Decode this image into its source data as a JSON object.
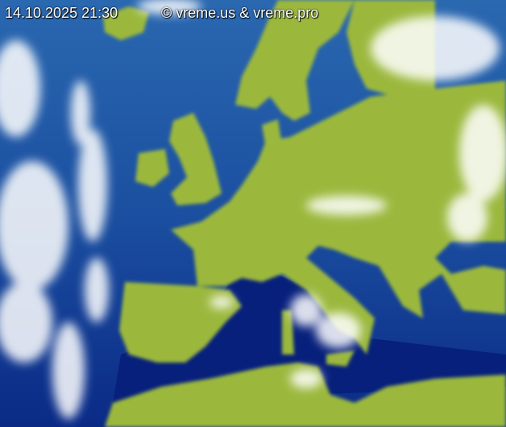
{
  "timestamp": "14.10.2025 21:30",
  "copyright": "© vreme.us & vreme.pro",
  "colors": {
    "sea": "#0d3a93",
    "deep_sea": "#07247a",
    "land": "#9bb83e",
    "cloud": "#ffffff",
    "borders": "#555555"
  }
}
